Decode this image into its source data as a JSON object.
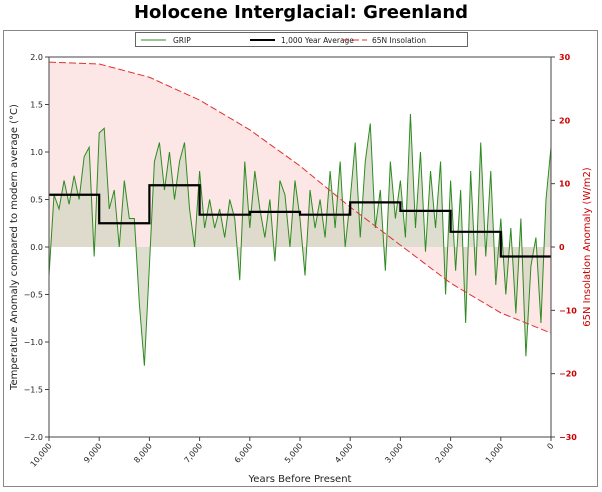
{
  "chart_data": {
    "type": "line",
    "title": "Holocene Interglacial:  Greenland",
    "xlabel": "Years Before Present",
    "ylabel": "Temperature Anomaly compared to modern average (°C)",
    "y2label": "65N Insolation Anomaly (W/m2)",
    "xlim": [
      10000,
      0
    ],
    "ylim": [
      -2.0,
      2.0
    ],
    "y2lim": [
      -30,
      30
    ],
    "xticks": [
      10000,
      9000,
      8000,
      7000,
      6000,
      5000,
      4000,
      3000,
      2000,
      1000,
      0
    ],
    "xtick_labels": [
      "10,000",
      "9,000",
      "8,000",
      "7,000",
      "6,000",
      "5,000",
      "4,000",
      "3,000",
      "2,000",
      "1,000",
      "0"
    ],
    "yticks": [
      "2.0",
      "1.5",
      "1.0",
      "0.5",
      "0.0",
      "−0.5",
      "−1.0",
      "−1.5",
      "−2.0"
    ],
    "y2ticks": [
      "30",
      "20",
      "10",
      "0",
      "−10",
      "−20",
      "−30"
    ],
    "legend_placement": "top-center",
    "grid": false,
    "colors": {
      "grip": "#2e8b22",
      "average": "#000000",
      "insolation": "#e03030",
      "insolation_fill": "#fde6e6",
      "grip_fill": "#d8d8c8",
      "right_axis": "#cc0000"
    },
    "series": [
      {
        "name": "GRIP",
        "axis": "left",
        "points": [
          [
            10000,
            -0.3
          ],
          [
            9900,
            0.55
          ],
          [
            9800,
            0.4
          ],
          [
            9700,
            0.7
          ],
          [
            9600,
            0.45
          ],
          [
            9500,
            0.75
          ],
          [
            9400,
            0.5
          ],
          [
            9300,
            0.95
          ],
          [
            9200,
            1.05
          ],
          [
            9100,
            -0.1
          ],
          [
            9000,
            1.2
          ],
          [
            8900,
            1.25
          ],
          [
            8800,
            0.4
          ],
          [
            8700,
            0.6
          ],
          [
            8600,
            0.0
          ],
          [
            8500,
            0.7
          ],
          [
            8400,
            0.3
          ],
          [
            8300,
            0.3
          ],
          [
            8200,
            -0.6
          ],
          [
            8100,
            -1.25
          ],
          [
            8000,
            -0.2
          ],
          [
            7900,
            0.9
          ],
          [
            7800,
            1.1
          ],
          [
            7700,
            0.6
          ],
          [
            7600,
            1.0
          ],
          [
            7500,
            0.5
          ],
          [
            7400,
            0.9
          ],
          [
            7300,
            1.1
          ],
          [
            7200,
            0.4
          ],
          [
            7100,
            0.0
          ],
          [
            7000,
            0.8
          ],
          [
            6900,
            0.2
          ],
          [
            6800,
            0.5
          ],
          [
            6700,
            0.2
          ],
          [
            6600,
            0.4
          ],
          [
            6500,
            0.1
          ],
          [
            6400,
            0.5
          ],
          [
            6300,
            0.3
          ],
          [
            6200,
            -0.35
          ],
          [
            6100,
            0.9
          ],
          [
            6000,
            0.2
          ],
          [
            5900,
            0.8
          ],
          [
            5800,
            0.4
          ],
          [
            5700,
            0.1
          ],
          [
            5600,
            0.5
          ],
          [
            5500,
            -0.15
          ],
          [
            5400,
            0.7
          ],
          [
            5300,
            0.55
          ],
          [
            5200,
            0.0
          ],
          [
            5100,
            0.7
          ],
          [
            5000,
            0.3
          ],
          [
            4900,
            -0.3
          ],
          [
            4800,
            0.6
          ],
          [
            4700,
            0.2
          ],
          [
            4600,
            0.5
          ],
          [
            4500,
            0.1
          ],
          [
            4400,
            0.8
          ],
          [
            4300,
            0.2
          ],
          [
            4200,
            0.9
          ],
          [
            4100,
            0.0
          ],
          [
            4000,
            0.5
          ],
          [
            3900,
            1.1
          ],
          [
            3800,
            0.1
          ],
          [
            3700,
            0.9
          ],
          [
            3600,
            1.3
          ],
          [
            3500,
            0.2
          ],
          [
            3400,
            0.6
          ],
          [
            3300,
            -0.25
          ],
          [
            3200,
            0.9
          ],
          [
            3100,
            0.3
          ],
          [
            3000,
            0.7
          ],
          [
            2900,
            0.1
          ],
          [
            2800,
            1.4
          ],
          [
            2700,
            0.2
          ],
          [
            2600,
            1.0
          ],
          [
            2500,
            -0.05
          ],
          [
            2400,
            0.8
          ],
          [
            2300,
            0.2
          ],
          [
            2200,
            0.9
          ],
          [
            2100,
            -0.5
          ],
          [
            2000,
            0.7
          ],
          [
            1900,
            -0.25
          ],
          [
            1800,
            0.6
          ],
          [
            1700,
            -0.8
          ],
          [
            1600,
            0.8
          ],
          [
            1500,
            -0.3
          ],
          [
            1400,
            1.1
          ],
          [
            1300,
            -0.1
          ],
          [
            1200,
            0.8
          ],
          [
            1100,
            -0.4
          ],
          [
            1000,
            0.3
          ],
          [
            900,
            -0.5
          ],
          [
            800,
            0.2
          ],
          [
            700,
            -0.7
          ],
          [
            600,
            0.3
          ],
          [
            500,
            -1.15
          ],
          [
            400,
            -0.2
          ],
          [
            300,
            0.1
          ],
          [
            200,
            -0.8
          ],
          [
            100,
            0.5
          ],
          [
            0,
            1.05
          ]
        ]
      },
      {
        "name": "1,000 Year Average",
        "axis": "left",
        "steps": [
          [
            10000,
            9000,
            0.55
          ],
          [
            9000,
            8000,
            0.25
          ],
          [
            8000,
            7000,
            0.65
          ],
          [
            7000,
            6000,
            0.34
          ],
          [
            6000,
            5000,
            0.37
          ],
          [
            5000,
            4000,
            0.34
          ],
          [
            4000,
            3000,
            0.47
          ],
          [
            3000,
            2000,
            0.38
          ],
          [
            2000,
            1000,
            0.16
          ],
          [
            1000,
            0,
            -0.1
          ]
        ]
      },
      {
        "name": "65N Insolation",
        "axis": "right",
        "points": [
          [
            10000,
            29.2
          ],
          [
            9000,
            28.9
          ],
          [
            8000,
            26.8
          ],
          [
            7000,
            23.2
          ],
          [
            6000,
            18.5
          ],
          [
            5000,
            12.8
          ],
          [
            4000,
            6.3
          ],
          [
            3000,
            0.3
          ],
          [
            2000,
            -5.7
          ],
          [
            1000,
            -10.4
          ],
          [
            0,
            -13.6
          ]
        ]
      }
    ]
  }
}
